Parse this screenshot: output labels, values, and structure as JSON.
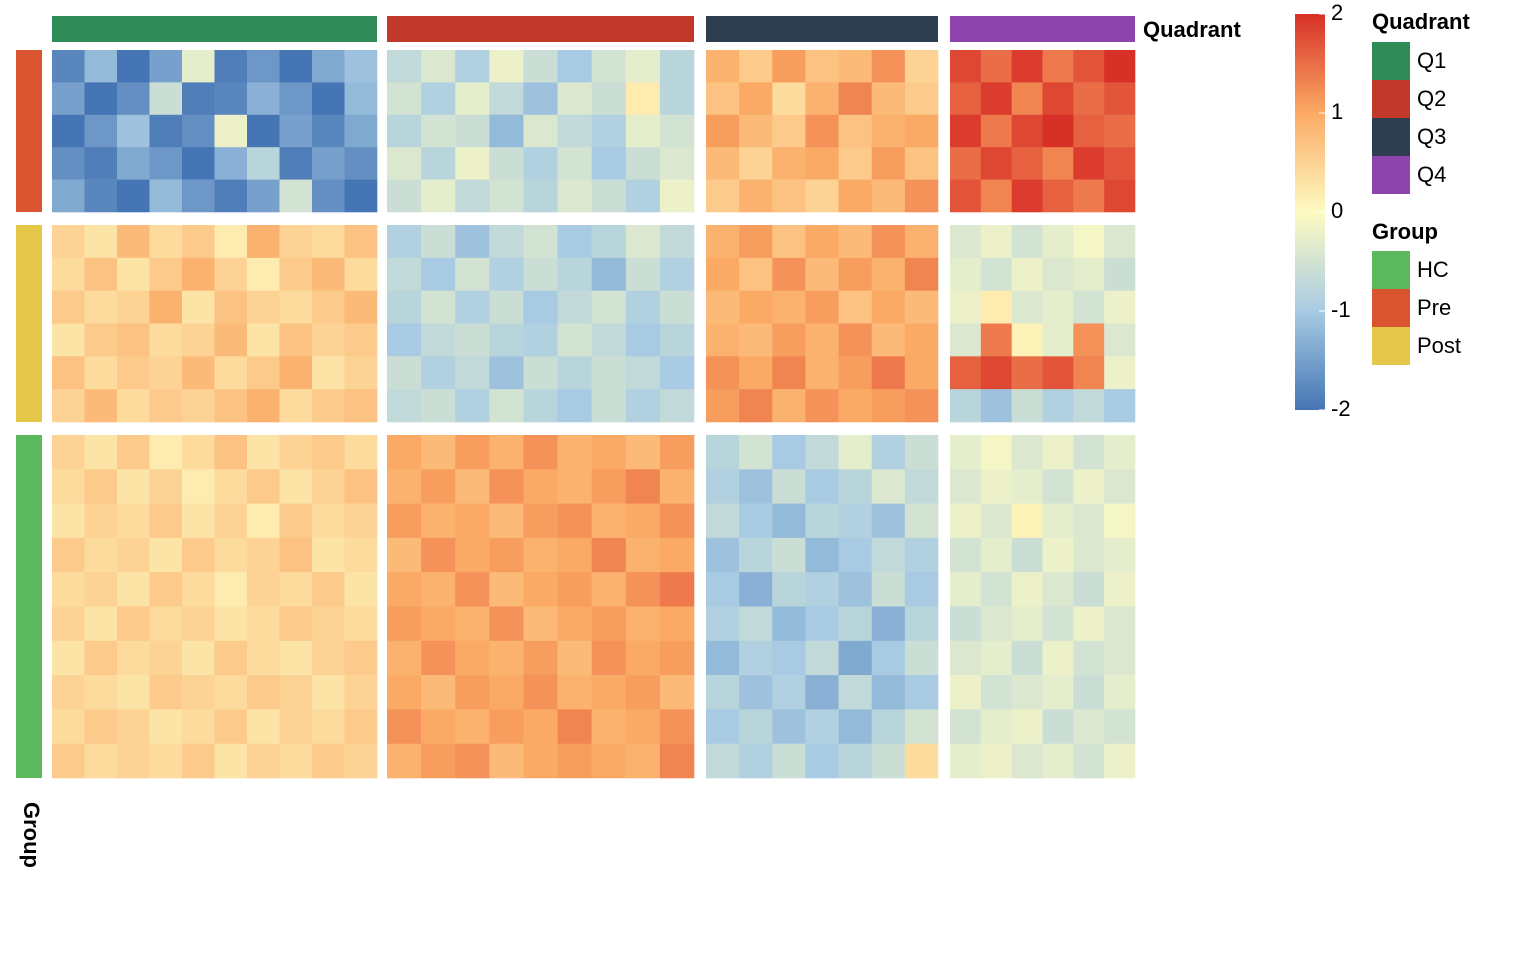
{
  "chart_data": {
    "type": "heatmap",
    "column_annotation": {
      "name": "Quadrant",
      "levels": [
        {
          "name": "Q1",
          "color": "#2e8b57"
        },
        {
          "name": "Q2",
          "color": "#c0392b"
        },
        {
          "name": "Q3",
          "color": "#2c3e50"
        },
        {
          "name": "Q4",
          "color": "#8e44ad"
        }
      ]
    },
    "row_annotation": {
      "name": "Group",
      "levels": [
        {
          "name": "HC",
          "color": "#5cb85c"
        },
        {
          "name": "Pre",
          "color": "#d9552f"
        },
        {
          "name": "Post",
          "color": "#e5c84a"
        }
      ]
    },
    "zlim": [
      -2,
      2
    ],
    "zticks": [
      2,
      1,
      0,
      -1,
      -2
    ],
    "colors": [
      "#4575b4",
      "#a8cbe3",
      "#fdfbc2",
      "#fbaa65",
      "#d73027"
    ],
    "row_groups": [
      {
        "group": "Pre",
        "values": [
          [
            [
              -1.8,
              -1.2,
              -2,
              -1.5,
              -0.3,
              -1.9,
              -1.6,
              -2,
              -1.4,
              -1.1
            ],
            [
              -0.7,
              -0.4,
              -0.9,
              -0.2,
              -0.6,
              -1,
              -0.5,
              -0.3,
              -0.8
            ],
            [
              0.9,
              0.6,
              1.1,
              0.7,
              0.8,
              1.2,
              0.5
            ],
            [
              1.8,
              1.5,
              1.9,
              1.4,
              1.7,
              2
            ]
          ],
          [
            [
              -1.5,
              -2,
              -1.7,
              -0.6,
              -1.9,
              -1.8,
              -1.3,
              -1.6,
              -2,
              -1.2
            ],
            [
              -0.5,
              -0.9,
              -0.3,
              -0.7,
              -1.1,
              -0.4,
              -0.6,
              0.2,
              -0.8
            ],
            [
              0.7,
              1,
              0.4,
              0.9,
              1.3,
              0.8,
              0.6
            ],
            [
              1.6,
              1.9,
              1.3,
              1.8,
              1.5,
              1.7
            ]
          ],
          [
            [
              -2,
              -1.6,
              -1.1,
              -1.9,
              -1.7,
              -0.2,
              -2,
              -1.5,
              -1.8,
              -1.4
            ],
            [
              -0.8,
              -0.5,
              -0.6,
              -1.2,
              -0.4,
              -0.7,
              -0.9,
              -0.3,
              -0.5
            ],
            [
              1.1,
              0.8,
              0.6,
              1.2,
              0.7,
              0.9,
              1
            ],
            [
              1.9,
              1.4,
              1.8,
              2,
              1.6,
              1.5
            ]
          ],
          [
            [
              -1.7,
              -1.9,
              -1.4,
              -1.6,
              -2,
              -1.3,
              -0.8,
              -1.9,
              -1.5,
              -1.7
            ],
            [
              -0.4,
              -0.8,
              -0.2,
              -0.6,
              -0.9,
              -0.5,
              -1,
              -0.6,
              -0.4
            ],
            [
              0.8,
              0.5,
              0.9,
              1,
              0.6,
              1.1,
              0.7
            ],
            [
              1.5,
              1.8,
              1.6,
              1.3,
              1.9,
              1.7
            ]
          ],
          [
            [
              -1.4,
              -1.8,
              -2,
              -1.2,
              -1.6,
              -1.9,
              -1.5,
              -0.5,
              -1.7,
              -2
            ],
            [
              -0.6,
              -0.3,
              -0.7,
              -0.5,
              -0.8,
              -0.4,
              -0.6,
              -0.9,
              -0.2
            ],
            [
              0.6,
              0.9,
              0.7,
              0.5,
              1,
              0.8,
              1.2
            ],
            [
              1.7,
              1.3,
              1.9,
              1.6,
              1.4,
              1.8
            ]
          ]
        ]
      },
      {
        "group": "Post",
        "values": [
          [
            [
              0.5,
              0.3,
              0.8,
              0.4,
              0.6,
              0.2,
              0.9,
              0.5,
              0.4,
              0.7
            ],
            [
              -0.9,
              -0.6,
              -1.1,
              -0.7,
              -0.5,
              -1,
              -0.8,
              -0.4,
              -0.7
            ],
            [
              0.9,
              1.1,
              0.7,
              1,
              0.8,
              1.2,
              0.9
            ],
            [
              -0.4,
              -0.2,
              -0.5,
              -0.3,
              -0.1,
              -0.4
            ]
          ],
          [
            [
              0.4,
              0.7,
              0.3,
              0.6,
              0.9,
              0.5,
              0.2,
              0.6,
              0.8,
              0.4
            ],
            [
              -0.7,
              -1,
              -0.5,
              -0.9,
              -0.6,
              -0.8,
              -1.2,
              -0.6,
              -0.9
            ],
            [
              1,
              0.7,
              1.2,
              0.8,
              1.1,
              0.9,
              1.3
            ],
            [
              -0.3,
              -0.5,
              -0.2,
              -0.4,
              -0.3,
              -0.6
            ]
          ],
          [
            [
              0.6,
              0.4,
              0.5,
              0.9,
              0.3,
              0.7,
              0.5,
              0.4,
              0.6,
              0.8
            ],
            [
              -0.8,
              -0.5,
              -0.9,
              -0.6,
              -1,
              -0.7,
              -0.5,
              -0.9,
              -0.6
            ],
            [
              0.8,
              1,
              0.9,
              1.1,
              0.7,
              1,
              0.8
            ],
            [
              -0.2,
              0.2,
              -0.4,
              -0.3,
              -0.5,
              -0.2
            ]
          ],
          [
            [
              0.3,
              0.6,
              0.7,
              0.4,
              0.5,
              0.8,
              0.3,
              0.7,
              0.5,
              0.6
            ],
            [
              -1,
              -0.7,
              -0.6,
              -0.8,
              -0.9,
              -0.5,
              -0.7,
              -1,
              -0.8
            ],
            [
              0.9,
              0.8,
              1.1,
              0.9,
              1.2,
              0.8,
              1
            ],
            [
              -0.4,
              1.4,
              0.1,
              -0.3,
              1.2,
              -0.4
            ]
          ],
          [
            [
              0.7,
              0.4,
              0.6,
              0.5,
              0.8,
              0.4,
              0.6,
              0.9,
              0.3,
              0.5
            ],
            [
              -0.6,
              -0.9,
              -0.7,
              -1.1,
              -0.6,
              -0.8,
              -0.6,
              -0.7,
              -1
            ],
            [
              1.2,
              1,
              1.3,
              0.9,
              1.1,
              1.4,
              1
            ],
            [
              1.6,
              1.8,
              1.5,
              1.7,
              1.3,
              -0.2
            ]
          ],
          [
            [
              0.5,
              0.8,
              0.4,
              0.6,
              0.5,
              0.7,
              0.9,
              0.4,
              0.6,
              0.7
            ],
            [
              -0.7,
              -0.6,
              -0.9,
              -0.5,
              -0.8,
              -1,
              -0.6,
              -0.9,
              -0.7
            ],
            [
              1.1,
              1.3,
              0.9,
              1.2,
              1,
              1.1,
              1.2
            ],
            [
              -0.8,
              -1.1,
              -0.6,
              -0.9,
              -0.7,
              -1
            ]
          ]
        ]
      },
      {
        "group": "HC",
        "values": [
          [
            [
              0.5,
              0.3,
              0.6,
              0.2,
              0.4,
              0.7,
              0.3,
              0.5,
              0.6,
              0.4
            ],
            [
              1,
              0.8,
              1.1,
              0.9,
              1.2,
              0.9,
              1,
              0.8,
              1.1
            ],
            [
              -0.8,
              -0.5,
              -1,
              -0.7,
              -0.3,
              -0.9,
              -0.6
            ],
            [
              -0.3,
              -0.1,
              -0.4,
              -0.2,
              -0.5,
              -0.3
            ]
          ],
          [
            [
              0.4,
              0.6,
              0.3,
              0.5,
              0.2,
              0.4,
              0.6,
              0.3,
              0.5,
              0.7
            ],
            [
              0.9,
              1.1,
              0.8,
              1.2,
              1,
              0.9,
              1.1,
              1.3,
              0.9
            ],
            [
              -0.9,
              -1.1,
              -0.6,
              -1,
              -0.8,
              -0.4,
              -0.7
            ],
            [
              -0.4,
              -0.2,
              -0.3,
              -0.5,
              -0.2,
              -0.4
            ]
          ],
          [
            [
              0.3,
              0.5,
              0.4,
              0.6,
              0.3,
              0.5,
              0.2,
              0.6,
              0.4,
              0.5
            ],
            [
              1.1,
              0.9,
              1,
              0.8,
              1.1,
              1.2,
              0.9,
              1,
              1.2
            ],
            [
              -0.7,
              -1,
              -1.2,
              -0.8,
              -0.9,
              -1.1,
              -0.5
            ],
            [
              -0.2,
              -0.4,
              0.1,
              -0.3,
              -0.4,
              -0.1
            ]
          ],
          [
            [
              0.6,
              0.4,
              0.5,
              0.3,
              0.6,
              0.4,
              0.5,
              0.7,
              0.3,
              0.4
            ],
            [
              0.8,
              1.2,
              1,
              1.1,
              0.9,
              1,
              1.3,
              0.9,
              1
            ],
            [
              -1.1,
              -0.8,
              -0.6,
              -1.2,
              -1,
              -0.7,
              -0.9
            ],
            [
              -0.5,
              -0.3,
              -0.6,
              -0.2,
              -0.4,
              -0.3
            ]
          ],
          [
            [
              0.4,
              0.5,
              0.3,
              0.6,
              0.4,
              0.2,
              0.5,
              0.4,
              0.6,
              0.3
            ],
            [
              1,
              0.9,
              1.2,
              0.8,
              1,
              1.1,
              0.9,
              1.2,
              1.4
            ],
            [
              -1,
              -1.3,
              -0.8,
              -0.9,
              -1.1,
              -0.6,
              -1
            ],
            [
              -0.3,
              -0.5,
              -0.2,
              -0.4,
              -0.6,
              -0.2
            ]
          ],
          [
            [
              0.5,
              0.3,
              0.6,
              0.4,
              0.5,
              0.3,
              0.4,
              0.6,
              0.5,
              0.4
            ],
            [
              1.1,
              1,
              0.9,
              1.2,
              0.8,
              1,
              1.1,
              0.9,
              1
            ],
            [
              -0.9,
              -0.7,
              -1.2,
              -1,
              -0.8,
              -1.3,
              -0.8
            ],
            [
              -0.6,
              -0.4,
              -0.3,
              -0.5,
              -0.2,
              -0.4
            ]
          ],
          [
            [
              0.3,
              0.6,
              0.4,
              0.5,
              0.3,
              0.6,
              0.4,
              0.3,
              0.5,
              0.6
            ],
            [
              0.9,
              1.2,
              1,
              0.9,
              1.1,
              0.8,
              1.2,
              1,
              1.1
            ],
            [
              -1.2,
              -0.9,
              -1,
              -0.7,
              -1.4,
              -1,
              -0.6
            ],
            [
              -0.4,
              -0.3,
              -0.6,
              -0.2,
              -0.5,
              -0.4
            ]
          ],
          [
            [
              0.5,
              0.4,
              0.3,
              0.6,
              0.5,
              0.4,
              0.6,
              0.5,
              0.3,
              0.5
            ],
            [
              1,
              0.8,
              1.1,
              1,
              1.2,
              0.9,
              1,
              1.1,
              0.8
            ],
            [
              -0.8,
              -1.1,
              -0.9,
              -1.3,
              -0.7,
              -1.2,
              -1
            ],
            [
              -0.2,
              -0.5,
              -0.4,
              -0.3,
              -0.6,
              -0.3
            ]
          ],
          [
            [
              0.4,
              0.6,
              0.5,
              0.3,
              0.4,
              0.6,
              0.3,
              0.5,
              0.4,
              0.6
            ],
            [
              1.2,
              1,
              0.9,
              1.1,
              1,
              1.3,
              0.9,
              1,
              1.2
            ],
            [
              -1,
              -0.8,
              -1.1,
              -0.9,
              -1.2,
              -0.8,
              -0.5
            ],
            [
              -0.5,
              -0.3,
              -0.2,
              -0.6,
              -0.4,
              -0.5
            ]
          ],
          [
            [
              0.6,
              0.4,
              0.5,
              0.4,
              0.6,
              0.3,
              0.5,
              0.4,
              0.6,
              0.5
            ],
            [
              0.9,
              1.1,
              1.2,
              0.8,
              1,
              1.1,
              1,
              0.9,
              1.3
            ],
            [
              -0.7,
              -0.9,
              -0.6,
              -1,
              -0.8,
              -0.6,
              0.4
            ],
            [
              -0.3,
              -0.2,
              -0.4,
              -0.3,
              -0.5,
              -0.2
            ]
          ]
        ]
      }
    ]
  }
}
